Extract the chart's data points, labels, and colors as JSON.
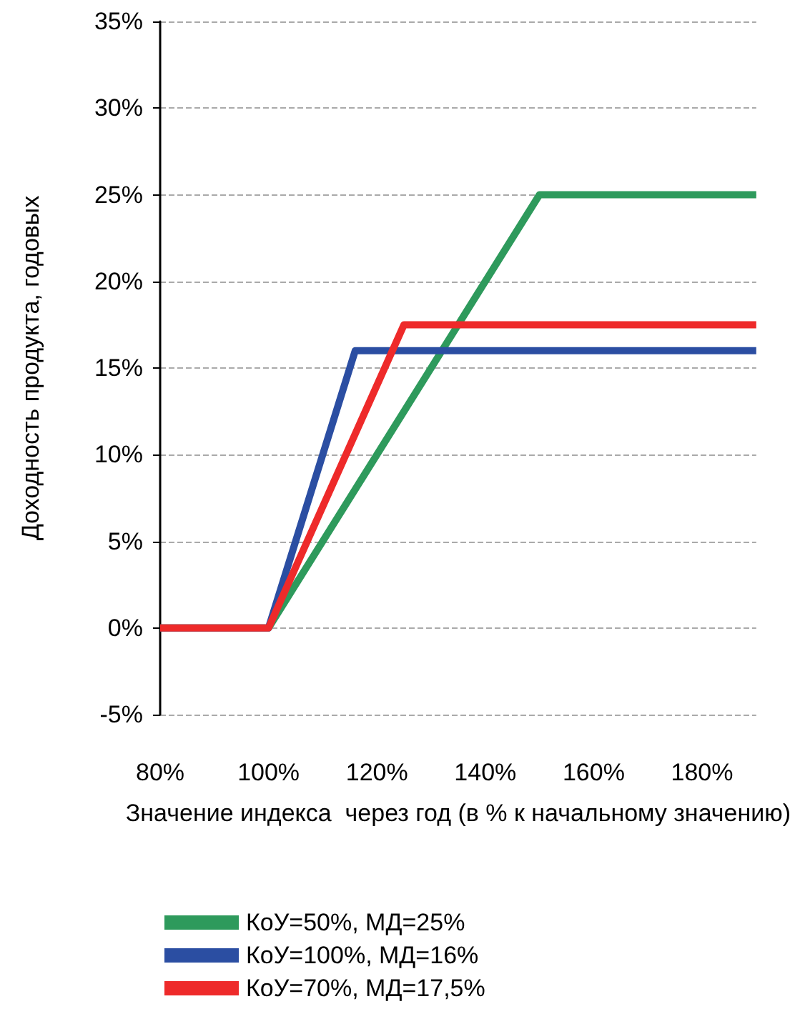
{
  "chart_data": {
    "type": "line",
    "xlabel": "Значение индекса  через год (в % к начальному значению)",
    "ylabel": "Доходность продукта, годовых",
    "series": [
      {
        "name": "КоУ=50%, МД=25%",
        "color": "#2e9a5c",
        "x": [
          80,
          100,
          150,
          190
        ],
        "values": [
          0,
          0,
          25,
          25
        ]
      },
      {
        "name": "КоУ=100%, МД=16%",
        "color": "#2b4ea2",
        "x": [
          80,
          100,
          116,
          190
        ],
        "values": [
          0,
          0,
          16,
          16
        ]
      },
      {
        "name": "КоУ=70%, МД=17,5%",
        "color": "#ee2a2a",
        "x": [
          80,
          100,
          125,
          190
        ],
        "values": [
          0,
          0,
          17.5,
          17.5
        ]
      }
    ],
    "xlim": [
      80,
      190
    ],
    "xticks": [
      {
        "value": 80,
        "label": "80%"
      },
      {
        "value": 100,
        "label": "100%"
      },
      {
        "value": 120,
        "label": "120%"
      },
      {
        "value": 140,
        "label": "140%"
      },
      {
        "value": 160,
        "label": "160%"
      },
      {
        "value": 180,
        "label": "180%"
      }
    ],
    "ylim": [
      -5,
      35
    ],
    "yticks": [
      {
        "value": -5,
        "label": "-5%"
      },
      {
        "value": 0,
        "label": "0%"
      },
      {
        "value": 5,
        "label": "5%"
      },
      {
        "value": 10,
        "label": "10%"
      },
      {
        "value": 15,
        "label": "15%"
      },
      {
        "value": 20,
        "label": "20%"
      },
      {
        "value": 25,
        "label": "25%"
      },
      {
        "value": 30,
        "label": "30%"
      },
      {
        "value": 35,
        "label": "35%"
      }
    ],
    "grid": "y",
    "legend": "bottom",
    "marker": "none",
    "line_style": "solid"
  }
}
